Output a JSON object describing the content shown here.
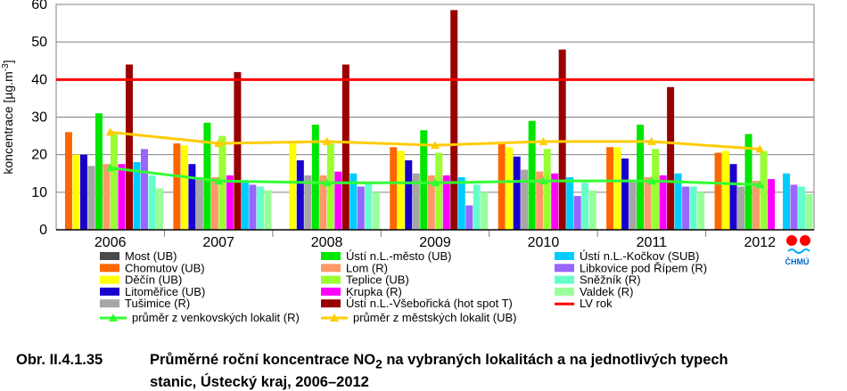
{
  "chart_data": {
    "type": "bar",
    "ylabel": "koncentrace [µg.m-3]",
    "ylim": [
      0,
      60
    ],
    "yticks": [
      0,
      10,
      20,
      30,
      40,
      50,
      60
    ],
    "categories": [
      "2006",
      "2007",
      "2008",
      "2009",
      "2010",
      "2011",
      "2012"
    ],
    "series": [
      {
        "name": "Most (UB)",
        "color": "#4a4a4a",
        "values": [
          null,
          null,
          null,
          null,
          null,
          null,
          null
        ]
      },
      {
        "name": "Chomutov (UB)",
        "color": "#ff6600",
        "values": [
          26,
          23,
          null,
          22,
          23,
          22,
          20.5
        ]
      },
      {
        "name": "Děčín (UB)",
        "color": "#ffff00",
        "values": [
          20,
          22.5,
          23,
          21,
          22,
          22,
          21
        ]
      },
      {
        "name": "Litoměřice (UB)",
        "color": "#1a00cc",
        "values": [
          20,
          17.5,
          18.5,
          18.5,
          19.5,
          19,
          17.5
        ]
      },
      {
        "name": "Tušimice (R)",
        "color": "#a6a6a6",
        "values": [
          17,
          14,
          14.5,
          15,
          16,
          13,
          11.5
        ]
      },
      {
        "name": "Ústí n.L.-město (UB)",
        "color": "#00e600",
        "values": [
          31,
          28.5,
          28,
          26.5,
          29,
          28,
          25.5
        ]
      },
      {
        "name": "Lom (R)",
        "color": "#ff9966",
        "values": [
          17.5,
          14,
          14.5,
          14.5,
          15.5,
          14,
          13
        ]
      },
      {
        "name": "Teplice (UB)",
        "color": "#99ff33",
        "values": [
          25.5,
          25,
          23,
          20.5,
          21.5,
          21.5,
          21
        ]
      },
      {
        "name": "Krupka (R)",
        "color": "#ff00ff",
        "values": [
          17.5,
          14.5,
          15.5,
          14.5,
          15,
          14.5,
          13.5
        ]
      },
      {
        "name": "Ústí n.L.-Všebořická (hot spot T)",
        "color": "#990000",
        "values": [
          44,
          42,
          44,
          58.5,
          48,
          38,
          null
        ]
      },
      {
        "name": "Ústí n.L.-Kočkov (SUB)",
        "color": "#00ccff",
        "values": [
          18,
          13,
          15,
          14,
          14,
          15,
          15
        ]
      },
      {
        "name": "Libkovice pod Řípem (R)",
        "color": "#9966ff",
        "values": [
          21.5,
          12,
          11.5,
          6.5,
          9,
          11.5,
          12
        ]
      },
      {
        "name": "Sněžník (R)",
        "color": "#66ffcc",
        "values": [
          14.5,
          11.5,
          12.5,
          12,
          12.5,
          11.5,
          11.5
        ]
      },
      {
        "name": "Valdek (R)",
        "color": "#99ff99",
        "values": [
          11,
          10.5,
          10,
          10,
          10.5,
          10,
          9.5
        ]
      }
    ],
    "lines": [
      {
        "name": "průměr z venkovských lokalit (R)",
        "color": "#33ff33",
        "marker": "triangle",
        "values": [
          16.5,
          13,
          12.5,
          12.5,
          13,
          13,
          12
        ]
      },
      {
        "name": "průměr z městských lokalit (UB)",
        "color": "#ffcc00",
        "marker": "triangle",
        "values": [
          26,
          23,
          23.5,
          22.5,
          23.5,
          23.5,
          21.5
        ]
      },
      {
        "name": "LV rok",
        "color": "#ff0000",
        "constant": 40
      }
    ],
    "legend_position": "bottom"
  },
  "figure": {
    "caption_number": "Obr. II.4.1.35",
    "caption_line1_pre": "Průměrné roční koncentrace NO",
    "caption_line1_sub": "2",
    "caption_line1_post": " na vybraných lokalitách a na jednotlivých typech",
    "caption_line2": "stanic, Ústecký kraj, 2006–2012"
  },
  "logo": {
    "text": "ČHMÚ",
    "color_main": "#ff0000",
    "color_water": "#00aaff"
  }
}
